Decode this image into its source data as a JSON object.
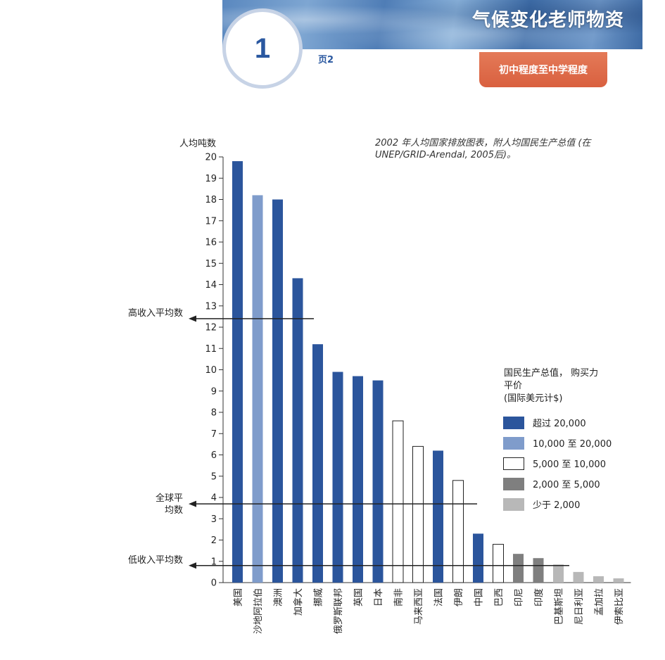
{
  "header": {
    "title": "气候变化老师物资",
    "lesson_number": "1",
    "page_label": "页2",
    "level": "初中程度至中学程度"
  },
  "caption": "2002 年人均国家排放图表，附人均国民生产总值 (在 UNEP/GRID-Arendal, 2005后)。",
  "chart_data": {
    "type": "bar",
    "ylabel": "人均吨数",
    "ylim": [
      0,
      20
    ],
    "yticks": [
      "0",
      "1",
      "2",
      "3",
      "4",
      "5",
      "6",
      "7",
      "8",
      "9",
      "10",
      "11",
      "12",
      "13",
      "14",
      "15",
      "16",
      "17",
      "18",
      "19",
      "20"
    ],
    "categories": [
      "美国",
      "沙地阿拉伯",
      "澳洲",
      "加拿大",
      "挪威",
      "俄罗斯联邦",
      "英国",
      "日本",
      "南非",
      "马来西亚",
      "法国",
      "伊朗",
      "中国",
      "巴西",
      "印尼",
      "印度",
      "巴基斯坦",
      "尼日利亚",
      "孟加拉",
      "伊索比亚"
    ],
    "values": [
      19.8,
      18.2,
      18.0,
      14.3,
      11.2,
      9.9,
      9.7,
      9.5,
      7.6,
      6.4,
      6.2,
      4.8,
      2.3,
      1.8,
      1.35,
      1.15,
      0.85,
      0.5,
      0.3,
      0.2
    ],
    "income_groups": [
      0,
      1,
      0,
      0,
      0,
      0,
      0,
      0,
      2,
      2,
      0,
      2,
      0,
      2,
      3,
      3,
      4,
      4,
      4,
      4
    ],
    "reference_lines": [
      {
        "label": "高收入平均数",
        "value": 12.4
      },
      {
        "label": "全球平均数",
        "value": 3.7
      },
      {
        "label": "低收入平均数",
        "value": 0.8
      }
    ],
    "legend": {
      "title_lines": [
        "国民生产总值， 购买力",
        "平价",
        "(国际美元计$)"
      ],
      "items": [
        {
          "label": "超过 20,000",
          "color": "#2b559c",
          "outline": false
        },
        {
          "label": "10,000 至 20,000",
          "color": "#7f9ccb",
          "outline": false
        },
        {
          "label": "5,000 至 10,000",
          "color": "#ffffff",
          "outline": true
        },
        {
          "label": "2,000 至 5,000",
          "color": "#7f7f7f",
          "outline": false
        },
        {
          "label": "少于 2,000",
          "color": "#b8b8b8",
          "outline": false
        }
      ]
    }
  }
}
